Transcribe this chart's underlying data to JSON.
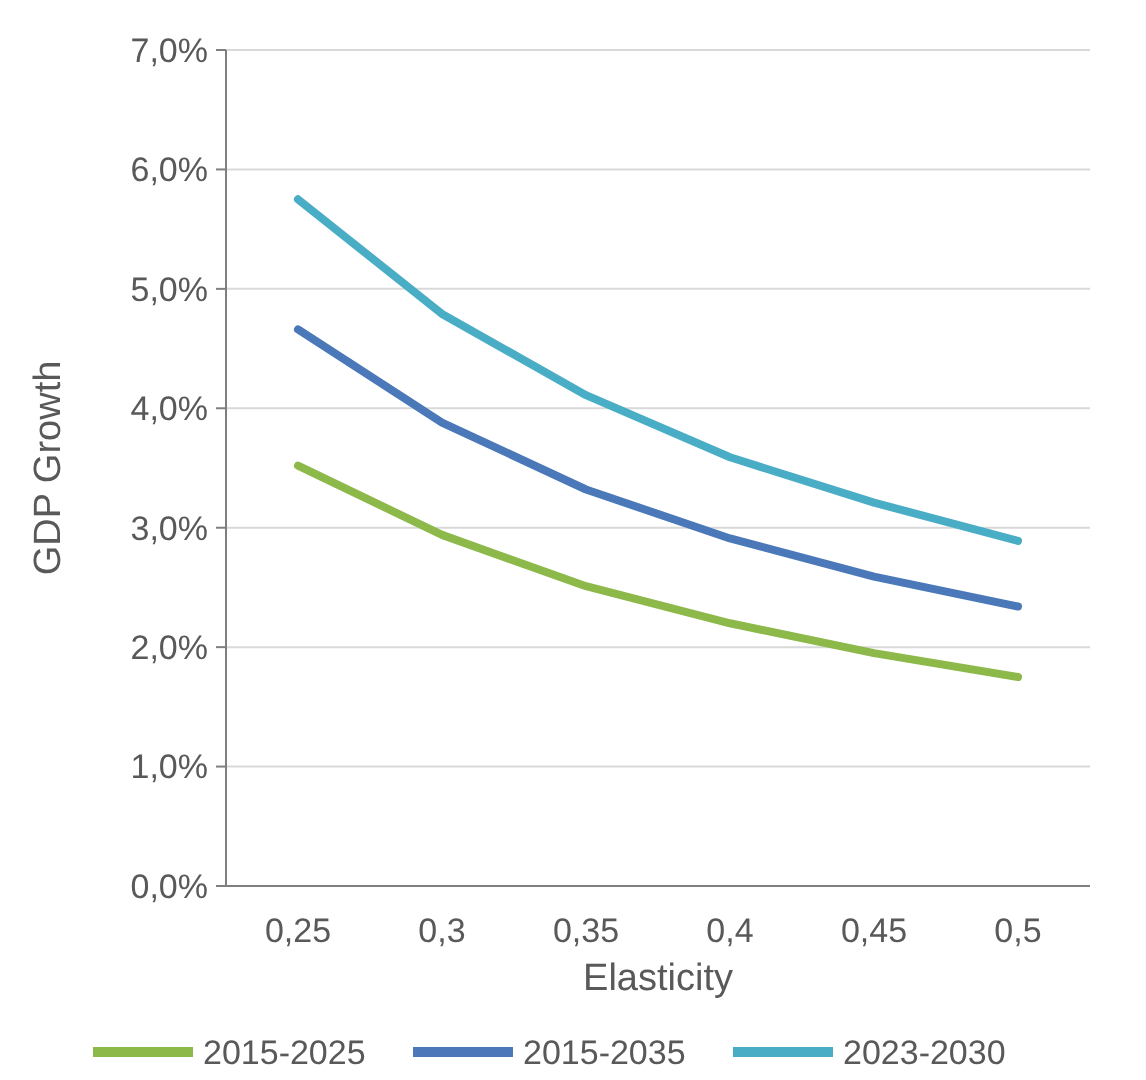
{
  "chart_data": {
    "type": "line",
    "xlabel": "Elasticity",
    "ylabel": "GDP Growth",
    "categories": [
      "0,25",
      "0,3",
      "0,35",
      "0,4",
      "0,45",
      "0,5"
    ],
    "series": [
      {
        "name": "2015-2025",
        "color": "#8db84a",
        "values": [
          3.52,
          2.94,
          2.51,
          2.2,
          1.95,
          1.75
        ]
      },
      {
        "name": "2015-2035",
        "color": "#4a78b8",
        "values": [
          4.66,
          3.88,
          3.32,
          2.91,
          2.59,
          2.34
        ]
      },
      {
        "name": "2023-2030",
        "color": "#4aadc6",
        "values": [
          5.75,
          4.79,
          4.11,
          3.59,
          3.21,
          2.89
        ]
      }
    ],
    "ylim": [
      0,
      7
    ],
    "yticks": [
      {
        "value": 0,
        "label": "0,0%"
      },
      {
        "value": 1,
        "label": "1,0%"
      },
      {
        "value": 2,
        "label": "2,0%"
      },
      {
        "value": 3,
        "label": "3,0%"
      },
      {
        "value": 4,
        "label": "4,0%"
      },
      {
        "value": 5,
        "label": "5,0%"
      },
      {
        "value": 6,
        "label": "6,0%"
      },
      {
        "value": 7,
        "label": "7,0%"
      }
    ],
    "grid": "y",
    "legend": "bottom",
    "marker": "none",
    "line_style": "solid"
  }
}
